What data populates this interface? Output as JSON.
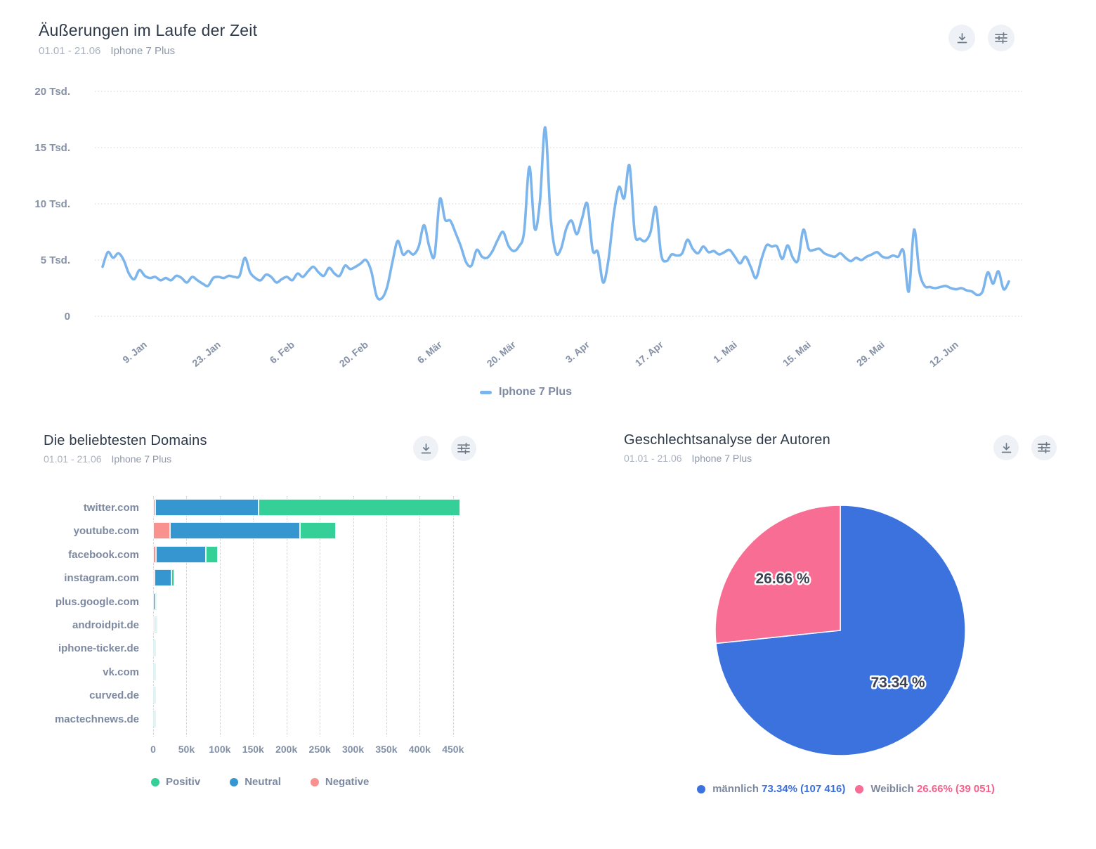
{
  "panels": {
    "timeline": {
      "title": "Äußerungen im Laufe der Zeit",
      "date_range": "01.01 - 21.06",
      "filter": "Iphone 7 Plus"
    },
    "domains": {
      "title": "Die beliebtesten Domains",
      "date_range": "01.01 - 21.06",
      "filter": "Iphone 7 Plus"
    },
    "gender": {
      "title": "Geschlechtsanalyse der Autoren",
      "date_range": "01.01 - 21.06",
      "filter": "Iphone 7 Plus"
    }
  },
  "toolbar": {
    "download_label": "download",
    "settings_label": "settings"
  },
  "chart_data": [
    {
      "type": "line",
      "title": "Äußerungen im Laufe der Zeit",
      "unit": "Tsd.",
      "line_color": "#7cb5ec",
      "grid": "dotted-horizontal",
      "ylim": [
        0,
        20000
      ],
      "y_ticks": [
        "20 Tsd.",
        "15 Tsd.",
        "10 Tsd.",
        "5 Tsd.",
        "0"
      ],
      "x_ticks": [
        "9. Jan",
        "23. Jan",
        "6. Feb",
        "20. Feb",
        "6. Mär",
        "20. Mär",
        "3. Apr",
        "17. Apr",
        "1. Mai",
        "15. Mai",
        "29. Mai",
        "12. Jun"
      ],
      "legend": {
        "position": "bottom",
        "label": "Iphone 7 Plus"
      },
      "series": [
        {
          "name": "Iphone 7 Plus",
          "values_unit": "thousands_per_day",
          "start_date": "01.01",
          "end_date": "21.06",
          "values": [
            4.4,
            5.7,
            5.2,
            5.6,
            5.0,
            3.8,
            3.3,
            4.1,
            3.6,
            3.4,
            3.5,
            3.2,
            3.4,
            3.2,
            3.6,
            3.4,
            3.0,
            3.5,
            3.2,
            2.9,
            2.7,
            3.4,
            3.5,
            3.4,
            3.6,
            3.5,
            3.6,
            5.2,
            3.9,
            3.4,
            3.2,
            3.7,
            3.5,
            3.0,
            3.3,
            3.5,
            3.2,
            3.8,
            3.5,
            4.0,
            4.4,
            3.9,
            3.6,
            4.3,
            3.8,
            3.6,
            4.5,
            4.2,
            4.4,
            4.7,
            5.0,
            4.0,
            1.8,
            1.6,
            2.6,
            4.8,
            6.7,
            5.5,
            5.8,
            5.5,
            6.2,
            8.1,
            6.2,
            5.4,
            10.4,
            8.6,
            8.5,
            7.4,
            6.2,
            4.8,
            4.5,
            5.9,
            5.3,
            5.2,
            5.8,
            6.8,
            7.5,
            6.3,
            5.8,
            6.2,
            7.5,
            13.3,
            7.8,
            10.2,
            16.8,
            9.0,
            5.7,
            6.0,
            7.8,
            8.5,
            7.3,
            8.7,
            10.0,
            5.9,
            5.7,
            3.0,
            5.0,
            9.0,
            11.5,
            10.5,
            13.4,
            7.4,
            6.9,
            6.7,
            7.5,
            9.7,
            5.5,
            4.9,
            5.5,
            5.4,
            5.6,
            6.8,
            6.0,
            5.6,
            6.2,
            5.7,
            5.8,
            5.5,
            5.7,
            5.9,
            5.3,
            4.7,
            5.3,
            4.4,
            3.4,
            5.0,
            6.3,
            6.2,
            6.2,
            5.1,
            6.3,
            5.2,
            5.0,
            7.7,
            6.0,
            5.9,
            6.0,
            5.6,
            5.4,
            5.3,
            5.6,
            5.2,
            4.9,
            5.2,
            5.0,
            5.3,
            5.5,
            5.7,
            5.3,
            5.2,
            5.4,
            5.3,
            5.8,
            2.2,
            7.7,
            4.0,
            2.7,
            2.6,
            2.5,
            2.6,
            2.7,
            2.5,
            2.4,
            2.5,
            2.3,
            2.2,
            1.9,
            2.2,
            3.9,
            2.9,
            4.0,
            2.4,
            3.1
          ]
        }
      ]
    },
    {
      "type": "bar",
      "orientation": "horizontal-stacked",
      "title": "Die beliebtesten Domains",
      "categories": [
        "twitter.com",
        "youtube.com",
        "facebook.com",
        "instagram.com",
        "plus.google.com",
        "androidpit.de",
        "iphone-ticker.de",
        "vk.com",
        "curved.de",
        "mactechnews.de"
      ],
      "values_unit": "thousands",
      "xlim": [
        0,
        485000
      ],
      "x_ticks": [
        "0",
        "50k",
        "100k",
        "150k",
        "200k",
        "250k",
        "300k",
        "350k",
        "400k",
        "450k"
      ],
      "stack_order": [
        "Negative",
        "Neutral",
        "Positiv"
      ],
      "series": [
        {
          "name": "Negative",
          "color": "#f9918f",
          "values": [
            3,
            25,
            4,
            0.8,
            0,
            0.4,
            0,
            0,
            0,
            0
          ]
        },
        {
          "name": "Neutral",
          "color": "#3697d0",
          "values": [
            155,
            195,
            75,
            25,
            3.6,
            0.7,
            0.4,
            1.0,
            1.0,
            0.4
          ]
        },
        {
          "name": "Positiv",
          "color": "#35d097",
          "values": [
            303,
            54,
            18,
            5,
            0.4,
            0.3,
            1.2,
            0.2,
            0.2,
            0.9
          ]
        }
      ],
      "legend": [
        "Positiv",
        "Neutral",
        "Negative"
      ],
      "legend_colors": [
        "#35d097",
        "#3697d0",
        "#f9918f"
      ]
    },
    {
      "type": "pie",
      "title": "Geschlechtsanalyse der Autoren",
      "start_angle": "top",
      "direction": "clockwise",
      "slices": [
        {
          "name": "männlich",
          "percent": 73.34,
          "count": 107416,
          "label": "73.34 %",
          "legend_text": "73.34% (107 416)",
          "color": "#3b72de",
          "text_color": "#3b6fd9"
        },
        {
          "name": "Weiblich",
          "percent": 26.66,
          "count": 39051,
          "label": "26.66 %",
          "legend_text": "26.66% (39 051)",
          "color": "#f76d94",
          "text_color": "#f7608a"
        }
      ]
    }
  ]
}
